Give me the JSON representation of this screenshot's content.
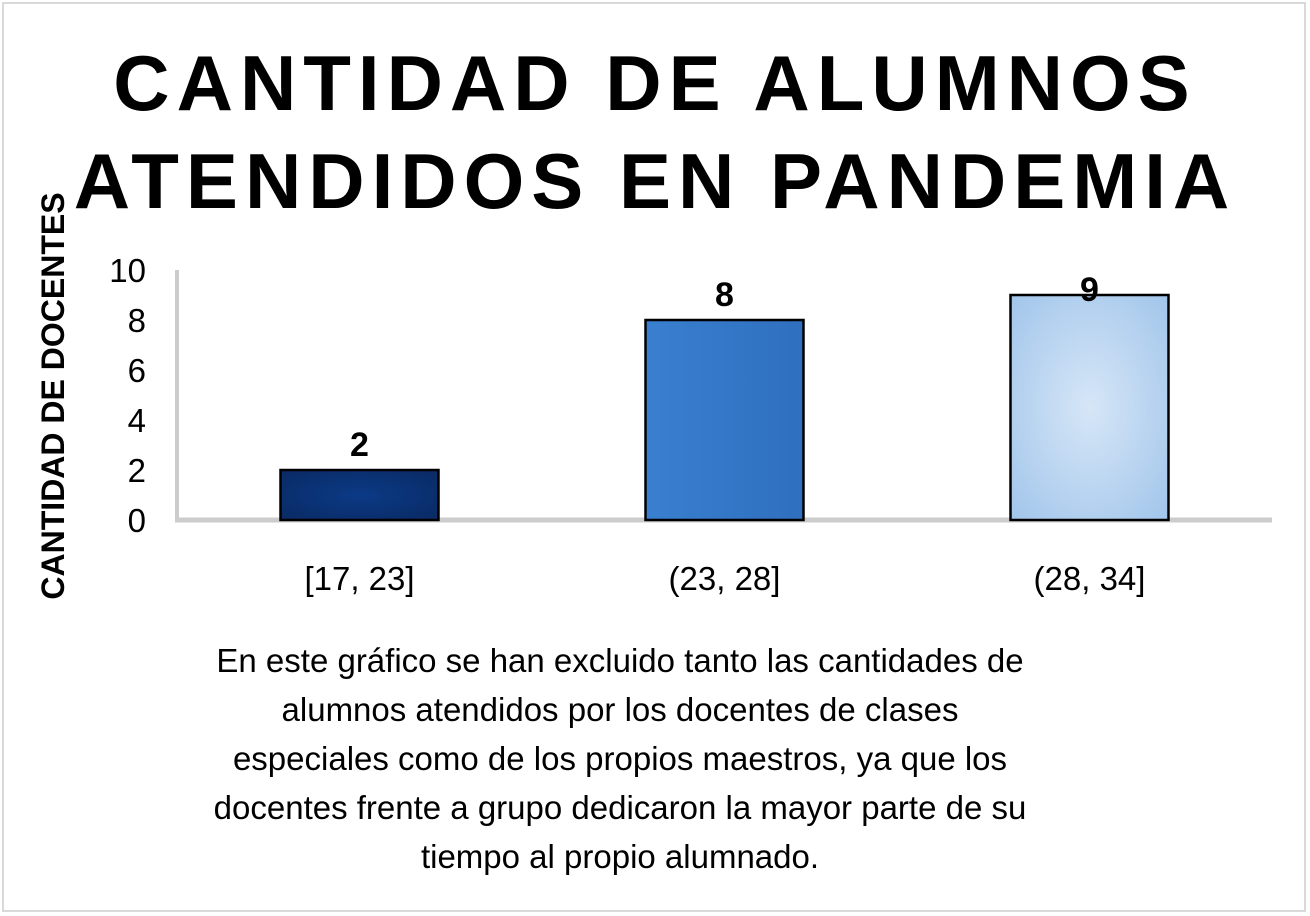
{
  "chart_data": {
    "type": "bar",
    "title_lines": [
      "CANTIDAD DE ALUMNOS",
      "ATENDIDOS EN PANDEMIA"
    ],
    "xlabel": "",
    "ylabel": "CANTIDAD DE DOCENTES",
    "categories": [
      "[17, 23]",
      "(23, 28]",
      "(28, 34]"
    ],
    "values": [
      2,
      8,
      9
    ],
    "data_labels": [
      "2",
      "8",
      "9"
    ],
    "ylim": [
      0,
      10
    ],
    "yticks": [
      0,
      2,
      4,
      6,
      8,
      10
    ],
    "grid": false,
    "legend": "none",
    "bar_colors": [
      [
        "#0b3a86",
        "#0a2a63"
      ],
      [
        "#3a7fd0",
        "#2f6fbf"
      ],
      [
        "#d6e6f7",
        "#9ec3ea"
      ]
    ]
  },
  "note": "En este gráfico se han excluido tanto las cantidades de alumnos atendidos por los docentes de clases especiales como de los propios maestros, ya que los docentes frente a grupo dedicaron la mayor parte de su tiempo al propio alumnado."
}
